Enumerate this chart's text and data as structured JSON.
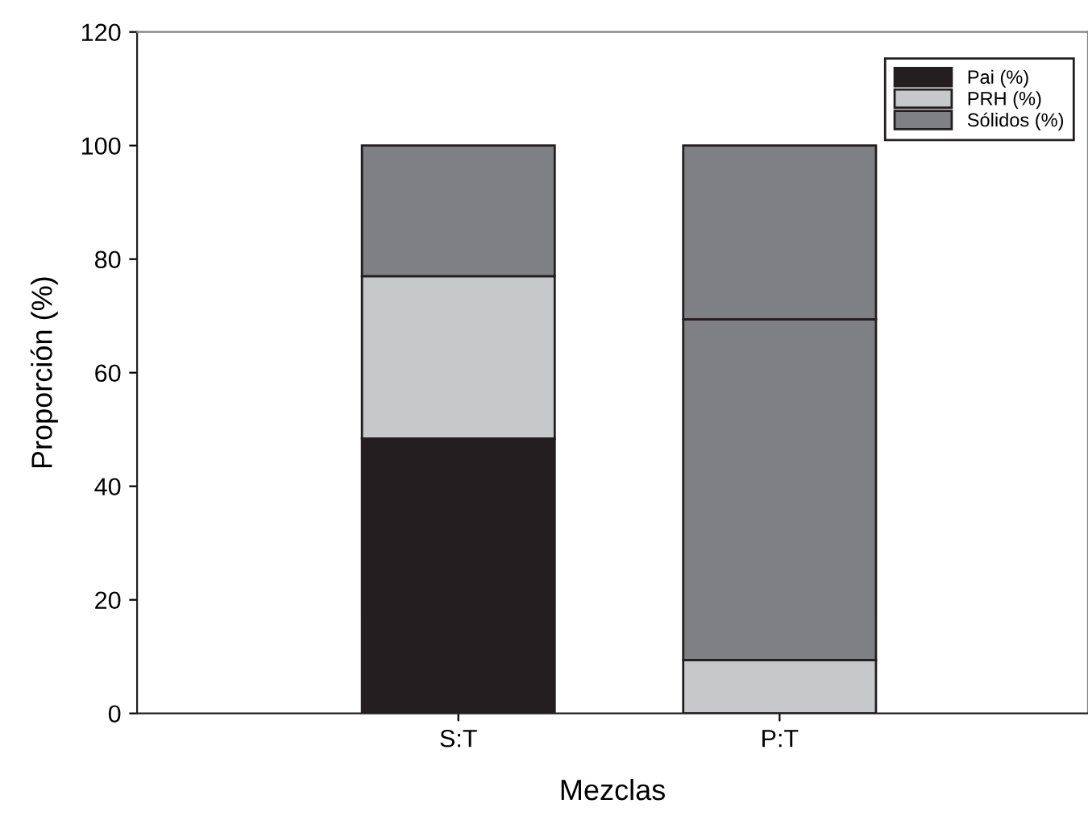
{
  "chart_data": {
    "type": "bar",
    "stacked": true,
    "xlabel": "Mezclas",
    "ylabel": "Proporción (%)",
    "categories": [
      "S:T",
      "P:T"
    ],
    "series": [
      {
        "name": "Pai (%)",
        "color": "#231f20",
        "values": [
          48.4,
          null
        ]
      },
      {
        "name": "PRH (%)",
        "color": "#c7c8ca",
        "values": [
          28.6,
          9.4
        ]
      },
      {
        "name": "Sólidos (%)",
        "color": "#7f8084",
        "values": [
          23.0,
          60.0
        ]
      },
      {
        "color": "#7f8084",
        "values": [
          null,
          30.6
        ]
      }
    ],
    "ylim": [
      0,
      120
    ],
    "yticks": [
      0,
      20,
      40,
      60,
      80,
      100,
      120
    ],
    "grid": false,
    "legend": "top right"
  }
}
